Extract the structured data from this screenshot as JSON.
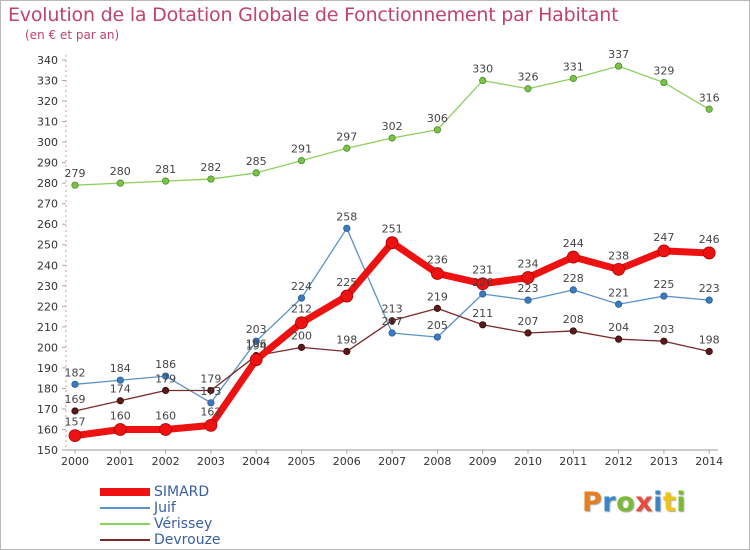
{
  "title": "Evolution de la Dotation Globale de Fonctionnement par Habitant",
  "subtitle": "(en € et par an)",
  "logo": {
    "text": "Proxiti",
    "letters": [
      {
        "ch": "P",
        "color": "#e67e22"
      },
      {
        "ch": "r",
        "color": "#3a87c8"
      },
      {
        "ch": "o",
        "color": "#7cb83a"
      },
      {
        "ch": "x",
        "color": "#e74c3c"
      },
      {
        "ch": "i",
        "color": "#3a87c8"
      },
      {
        "ch": "t",
        "color": "#f1c40f"
      },
      {
        "ch": "i",
        "color": "#7cb83a"
      }
    ]
  },
  "chart_data": {
    "type": "line",
    "title": "Evolution de la Dotation Globale de Fonctionnement par Habitant",
    "subtitle": "(en € et par an)",
    "xlabel": "",
    "ylabel": "",
    "x": [
      "2000",
      "2001",
      "2002",
      "2003",
      "2004",
      "2005",
      "2006",
      "2007",
      "2008",
      "2009",
      "2010",
      "2011",
      "2012",
      "2013",
      "2014"
    ],
    "ylim": [
      150,
      340
    ],
    "yticks": [
      150,
      160,
      170,
      180,
      190,
      200,
      210,
      220,
      230,
      240,
      250,
      260,
      270,
      280,
      290,
      300,
      310,
      320,
      330,
      340
    ],
    "grid": false,
    "legend_position": "bottom-left",
    "series": [
      {
        "name": "SIMARD",
        "color": "#ee1111",
        "values": [
          157,
          160,
          160,
          162,
          194,
          212,
          225,
          251,
          236,
          231,
          234,
          244,
          238,
          247,
          246
        ]
      },
      {
        "name": "Juif",
        "color": "#5a93c8",
        "values": [
          182,
          184,
          186,
          173,
          203,
          224,
          258,
          207,
          205,
          226,
          223,
          228,
          221,
          225,
          223
        ]
      },
      {
        "name": "Vérissey",
        "color": "#8fcf5f",
        "values": [
          279,
          280,
          281,
          282,
          285,
          291,
          297,
          302,
          306,
          330,
          326,
          331,
          337,
          329,
          316
        ]
      },
      {
        "name": "Devrouze",
        "color": "#7a2a2a",
        "values": [
          169,
          174,
          179,
          179,
          196,
          200,
          198,
          213,
          219,
          211,
          207,
          208,
          204,
          203,
          198
        ]
      }
    ],
    "data_labels": [
      [
        "157",
        "160",
        "160",
        "162",
        "194",
        "212",
        "225",
        "251",
        "236",
        "231",
        "234",
        "244",
        "238",
        "247",
        "246"
      ],
      [
        "182",
        "184",
        "186",
        "173",
        "203",
        "224",
        "258",
        "207",
        "205",
        "226",
        "223",
        "228",
        "221",
        "225",
        "223"
      ],
      [
        "279",
        "280",
        "281",
        "282",
        "285",
        "291",
        "297",
        "302",
        "306",
        "330",
        "326",
        "331",
        "337",
        "329",
        "316"
      ],
      [
        "169",
        "174",
        "179",
        "179",
        "196",
        "200",
        "198",
        "213",
        "219",
        "211",
        "207",
        "208",
        "204",
        "203",
        "198"
      ]
    ]
  }
}
